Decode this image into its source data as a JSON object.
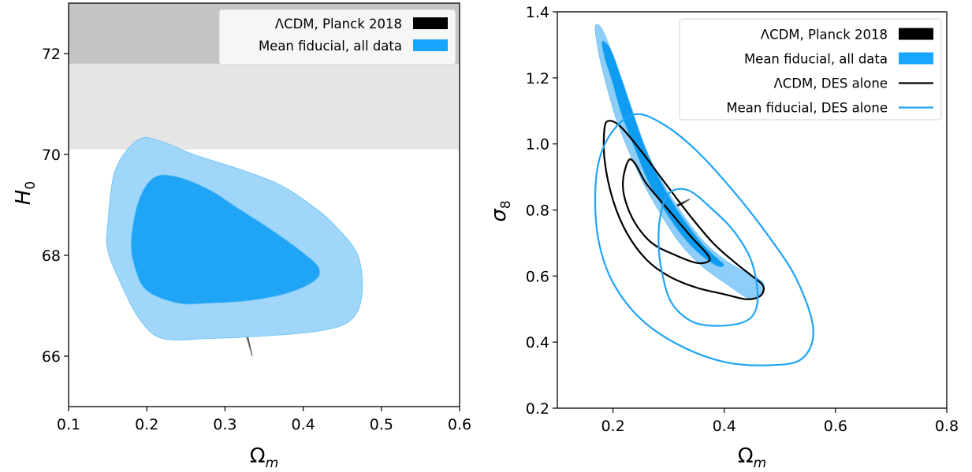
{
  "chart_data": [
    {
      "type": "contour",
      "title": "",
      "xlabel": "Ω_m",
      "ylabel": "H_0",
      "xlim": [
        0.1,
        0.6
      ],
      "ylim": [
        65,
        73
      ],
      "xticks": [
        "0.1",
        "0.2",
        "0.3",
        "0.4",
        "0.5",
        "0.6"
      ],
      "yticks": [
        "66",
        "68",
        "70",
        "72"
      ],
      "grid": false,
      "legend_position": "top-right",
      "shaded_bands": [
        {
          "y_range": [
            70.1,
            71.8
          ],
          "color": "#e5e5e5"
        },
        {
          "y_range": [
            71.8,
            73
          ],
          "color": "#c4c4c4"
        }
      ],
      "series": [
        {
          "name": "ΛCDM, Planck 2018",
          "style": "filled",
          "color": "#000000",
          "contours": [
            {
              "level": "95%",
              "color": "#5a5a5a",
              "points": [
                [
                  0.293,
                  68.85
                ],
                [
                  0.3,
                  68.4
                ],
                [
                  0.31,
                  67.6
                ],
                [
                  0.32,
                  66.8
                ],
                [
                  0.33,
                  66.25
                ],
                [
                  0.335,
                  66.0
                ],
                [
                  0.33,
                  66.35
                ],
                [
                  0.322,
                  66.9
                ],
                [
                  0.313,
                  67.55
                ],
                [
                  0.303,
                  68.3
                ],
                [
                  0.296,
                  68.75
                ]
              ]
            },
            {
              "level": "68%",
              "color": "#000000",
              "points": [
                [
                  0.298,
                  68.5
                ],
                [
                  0.306,
                  67.9
                ],
                [
                  0.316,
                  67.1
                ],
                [
                  0.325,
                  66.55
                ],
                [
                  0.328,
                  66.45
                ],
                [
                  0.32,
                  66.95
                ],
                [
                  0.311,
                  67.6
                ],
                [
                  0.301,
                  68.35
                ]
              ]
            }
          ]
        },
        {
          "name": "Mean fiducial, all data",
          "style": "filled",
          "color": "#16a6ff",
          "contours": [
            {
              "level": "95%",
              "color": "#9fd6fa",
              "points": [
                [
                  0.15,
                  68.6
                ],
                [
                  0.16,
                  69.7
                ],
                [
                  0.19,
                  70.3
                ],
                [
                  0.22,
                  70.25
                ],
                [
                  0.26,
                  70.0
                ],
                [
                  0.32,
                  69.7
                ],
                [
                  0.37,
                  69.4
                ],
                [
                  0.41,
                  69.0
                ],
                [
                  0.44,
                  68.6
                ],
                [
                  0.47,
                  68.0
                ],
                [
                  0.475,
                  67.2
                ],
                [
                  0.46,
                  66.7
                ],
                [
                  0.42,
                  66.5
                ],
                [
                  0.35,
                  66.4
                ],
                [
                  0.28,
                  66.35
                ],
                [
                  0.22,
                  66.35
                ],
                [
                  0.19,
                  66.75
                ],
                [
                  0.165,
                  67.5
                ],
                [
                  0.15,
                  68.1
                ]
              ]
            },
            {
              "level": "68%",
              "color": "#1fa4f6",
              "points": [
                [
                  0.18,
                  68.3
                ],
                [
                  0.19,
                  69.1
                ],
                [
                  0.21,
                  69.55
                ],
                [
                  0.24,
                  69.55
                ],
                [
                  0.28,
                  69.3
                ],
                [
                  0.32,
                  68.9
                ],
                [
                  0.36,
                  68.5
                ],
                [
                  0.4,
                  68.05
                ],
                [
                  0.42,
                  67.75
                ],
                [
                  0.415,
                  67.5
                ],
                [
                  0.38,
                  67.25
                ],
                [
                  0.33,
                  67.1
                ],
                [
                  0.28,
                  67.05
                ],
                [
                  0.24,
                  67.05
                ],
                [
                  0.2,
                  67.3
                ],
                [
                  0.185,
                  67.75
                ]
              ]
            }
          ]
        }
      ]
    },
    {
      "type": "contour",
      "title": "",
      "xlabel": "Ω_m",
      "ylabel": "σ_8",
      "xlim": [
        0.1,
        0.8
      ],
      "ylim": [
        0.2,
        1.4
      ],
      "xticks": [
        "0.2",
        "0.4",
        "0.6",
        "0.8"
      ],
      "yticks": [
        "0.2",
        "0.4",
        "0.6",
        "0.8",
        "1.0",
        "1.2",
        "1.4"
      ],
      "grid": false,
      "legend_position": "top-right",
      "series": [
        {
          "name": "ΛCDM, Planck 2018",
          "style": "filled",
          "color": "#000000",
          "contours": [
            {
              "level": "95%",
              "color": "#5a5a5a",
              "points": [
                [
                  0.295,
                  0.8
                ],
                [
                  0.31,
                  0.812
                ],
                [
                  0.325,
                  0.824
                ],
                [
                  0.338,
                  0.833
                ],
                [
                  0.332,
                  0.825
                ],
                [
                  0.318,
                  0.813
                ],
                [
                  0.303,
                  0.8
                ]
              ]
            },
            {
              "level": "68%",
              "color": "#000000",
              "points": [
                [
                  0.3,
                  0.803
                ],
                [
                  0.315,
                  0.813
                ],
                [
                  0.328,
                  0.823
                ],
                [
                  0.32,
                  0.815
                ],
                [
                  0.306,
                  0.804
                ]
              ]
            }
          ]
        },
        {
          "name": "Mean fiducial, all data",
          "style": "filled",
          "color": "#16a6ff",
          "contours": [
            {
              "level": "95%",
              "color": "#8fcef8",
              "points": [
                [
                  0.168,
                  1.35
                ],
                [
                  0.175,
                  1.36
                ],
                [
                  0.188,
                  1.32
                ],
                [
                  0.205,
                  1.24
                ],
                [
                  0.225,
                  1.13
                ],
                [
                  0.25,
                  1.02
                ],
                [
                  0.28,
                  0.91
                ],
                [
                  0.32,
                  0.8
                ],
                [
                  0.36,
                  0.71
                ],
                [
                  0.4,
                  0.65
                ],
                [
                  0.44,
                  0.61
                ],
                [
                  0.47,
                  0.58
                ],
                [
                  0.465,
                  0.545
                ],
                [
                  0.445,
                  0.532
                ],
                [
                  0.405,
                  0.575
                ],
                [
                  0.36,
                  0.63
                ],
                [
                  0.32,
                  0.7
                ],
                [
                  0.285,
                  0.79
                ],
                [
                  0.255,
                  0.88
                ],
                [
                  0.228,
                  0.98
                ],
                [
                  0.205,
                  1.08
                ],
                [
                  0.188,
                  1.18
                ],
                [
                  0.175,
                  1.27
                ]
              ]
            },
            {
              "level": "68%",
              "color": "#0e9cf0",
              "points": [
                [
                  0.18,
                  1.31
                ],
                [
                  0.195,
                  1.29
                ],
                [
                  0.215,
                  1.2
                ],
                [
                  0.235,
                  1.1
                ],
                [
                  0.258,
                  0.99
                ],
                [
                  0.285,
                  0.89
                ],
                [
                  0.32,
                  0.79
                ],
                [
                  0.36,
                  0.7
                ],
                [
                  0.39,
                  0.65
                ],
                [
                  0.4,
                  0.635
                ],
                [
                  0.39,
                  0.628
                ],
                [
                  0.36,
                  0.66
                ],
                [
                  0.325,
                  0.72
                ],
                [
                  0.292,
                  0.8
                ],
                [
                  0.262,
                  0.89
                ],
                [
                  0.238,
                  0.99
                ],
                [
                  0.215,
                  1.09
                ],
                [
                  0.198,
                  1.19
                ],
                [
                  0.185,
                  1.26
                ]
              ]
            }
          ]
        },
        {
          "name": "ΛCDM, DES alone",
          "style": "line",
          "color": "#000000",
          "contours": [
            {
              "level": "95%",
              "points": [
                [
                  0.185,
                  1.05
                ],
                [
                  0.195,
                  1.07
                ],
                [
                  0.215,
                  1.05
                ],
                [
                  0.25,
                  0.98
                ],
                [
                  0.29,
                  0.89
                ],
                [
                  0.335,
                  0.79
                ],
                [
                  0.38,
                  0.7
                ],
                [
                  0.42,
                  0.64
                ],
                [
                  0.45,
                  0.6
                ],
                [
                  0.47,
                  0.57
                ],
                [
                  0.465,
                  0.54
                ],
                [
                  0.44,
                  0.53
                ],
                [
                  0.4,
                  0.545
                ],
                [
                  0.35,
                  0.565
                ],
                [
                  0.3,
                  0.6
                ],
                [
                  0.26,
                  0.65
                ],
                [
                  0.225,
                  0.73
                ],
                [
                  0.2,
                  0.83
                ],
                [
                  0.185,
                  0.95
                ]
              ]
            },
            {
              "level": "68%",
              "points": [
                [
                  0.218,
                  0.89
                ],
                [
                  0.228,
                  0.95
                ],
                [
                  0.24,
                  0.94
                ],
                [
                  0.26,
                  0.88
                ],
                [
                  0.3,
                  0.8
                ],
                [
                  0.34,
                  0.72
                ],
                [
                  0.37,
                  0.665
                ],
                [
                  0.372,
                  0.645
                ],
                [
                  0.35,
                  0.64
                ],
                [
                  0.31,
                  0.665
                ],
                [
                  0.27,
                  0.7
                ],
                [
                  0.24,
                  0.76
                ],
                [
                  0.222,
                  0.83
                ]
              ]
            }
          ]
        },
        {
          "name": "Mean fiducial, DES alone",
          "style": "line",
          "color": "#1fa4f6",
          "contours": [
            {
              "level": "95%",
              "points": [
                [
                  0.175,
                  0.95
                ],
                [
                  0.2,
                  1.04
                ],
                [
                  0.24,
                  1.09
                ],
                [
                  0.29,
                  1.06
                ],
                [
                  0.35,
                  0.98
                ],
                [
                  0.42,
                  0.85
                ],
                [
                  0.48,
                  0.72
                ],
                [
                  0.53,
                  0.59
                ],
                [
                  0.56,
                  0.44
                ],
                [
                  0.54,
                  0.35
                ],
                [
                  0.48,
                  0.33
                ],
                [
                  0.4,
                  0.34
                ],
                [
                  0.32,
                  0.39
                ],
                [
                  0.25,
                  0.47
                ],
                [
                  0.2,
                  0.58
                ],
                [
                  0.175,
                  0.7
                ],
                [
                  0.168,
                  0.83
                ]
              ]
            },
            {
              "level": "68%",
              "points": [
                [
                  0.285,
                  0.78
                ],
                [
                  0.3,
                  0.85
                ],
                [
                  0.335,
                  0.86
                ],
                [
                  0.38,
                  0.8
                ],
                [
                  0.42,
                  0.73
                ],
                [
                  0.45,
                  0.64
                ],
                [
                  0.46,
                  0.53
                ],
                [
                  0.445,
                  0.47
                ],
                [
                  0.4,
                  0.45
                ],
                [
                  0.345,
                  0.46
                ],
                [
                  0.305,
                  0.52
                ],
                [
                  0.287,
                  0.62
                ],
                [
                  0.282,
                  0.7
                ]
              ]
            }
          ]
        }
      ]
    }
  ]
}
